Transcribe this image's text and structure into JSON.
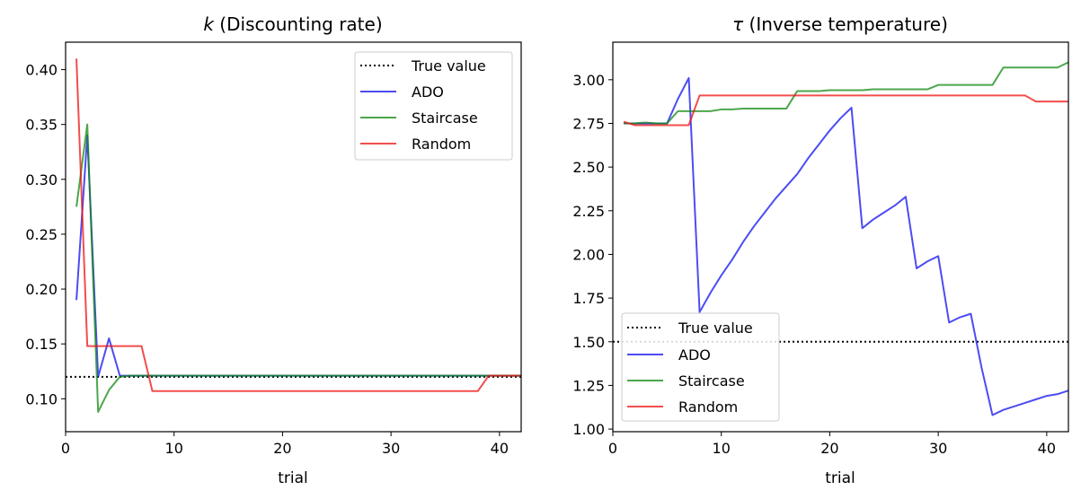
{
  "chart_data": [
    {
      "type": "line",
      "title_symbol": "k",
      "title_text": " (Discounting rate)",
      "xlabel": "trial",
      "ylabel": "",
      "xlim": [
        0,
        42
      ],
      "ylim": [
        0.07,
        0.425
      ],
      "xticks": [
        0,
        10,
        20,
        30,
        40
      ],
      "yticks": [
        0.1,
        0.15,
        0.2,
        0.25,
        0.3,
        0.35,
        0.4
      ],
      "ytick_labels": [
        "0.10",
        "0.15",
        "0.20",
        "0.25",
        "0.30",
        "0.35",
        "0.40"
      ],
      "grid": false,
      "legend_position": "upper right",
      "true_value": {
        "name": "True value",
        "value": 0.12,
        "color": "#000000"
      },
      "series": [
        {
          "name": "ADO",
          "color": "#0000ee",
          "x": [
            1,
            2,
            3,
            4,
            5,
            6,
            7,
            8,
            9,
            10,
            11,
            12,
            13,
            14,
            15,
            16,
            17,
            18,
            19,
            20,
            21,
            22,
            23,
            24,
            25,
            26,
            27,
            28,
            29,
            30,
            31,
            32,
            33,
            34,
            35,
            36,
            37,
            38,
            39,
            40,
            41,
            42
          ],
          "values": [
            0.19,
            0.34,
            0.12,
            0.155,
            0.121,
            0.121,
            0.121,
            0.121,
            0.121,
            0.121,
            0.121,
            0.121,
            0.121,
            0.121,
            0.121,
            0.121,
            0.121,
            0.121,
            0.121,
            0.121,
            0.121,
            0.121,
            0.121,
            0.121,
            0.121,
            0.121,
            0.121,
            0.121,
            0.121,
            0.121,
            0.121,
            0.121,
            0.121,
            0.121,
            0.121,
            0.121,
            0.121,
            0.121,
            0.121,
            0.121,
            0.121,
            0.121
          ]
        },
        {
          "name": "Staircase",
          "color": "#108a10",
          "x": [
            1,
            2,
            3,
            4,
            5,
            6,
            7,
            8,
            9,
            10,
            11,
            12,
            13,
            14,
            15,
            16,
            17,
            18,
            19,
            20,
            21,
            22,
            23,
            24,
            25,
            26,
            27,
            28,
            29,
            30,
            31,
            32,
            33,
            34,
            35,
            36,
            37,
            38,
            39,
            40,
            41,
            42
          ],
          "values": [
            0.275,
            0.35,
            0.088,
            0.108,
            0.12,
            0.121,
            0.121,
            0.121,
            0.121,
            0.121,
            0.121,
            0.121,
            0.121,
            0.121,
            0.121,
            0.121,
            0.121,
            0.121,
            0.121,
            0.121,
            0.121,
            0.121,
            0.121,
            0.121,
            0.121,
            0.121,
            0.121,
            0.121,
            0.121,
            0.121,
            0.121,
            0.121,
            0.121,
            0.121,
            0.121,
            0.121,
            0.121,
            0.121,
            0.121,
            0.121,
            0.121,
            0.121
          ]
        },
        {
          "name": "Random",
          "color": "#ee1111",
          "x": [
            1,
            2,
            3,
            4,
            5,
            6,
            7,
            8,
            9,
            10,
            11,
            12,
            13,
            14,
            15,
            16,
            17,
            18,
            19,
            20,
            21,
            22,
            23,
            24,
            25,
            26,
            27,
            28,
            29,
            30,
            31,
            32,
            33,
            34,
            35,
            36,
            37,
            38,
            39,
            40,
            41,
            42
          ],
          "values": [
            0.41,
            0.148,
            0.148,
            0.148,
            0.148,
            0.148,
            0.148,
            0.107,
            0.107,
            0.107,
            0.107,
            0.107,
            0.107,
            0.107,
            0.107,
            0.107,
            0.107,
            0.107,
            0.107,
            0.107,
            0.107,
            0.107,
            0.107,
            0.107,
            0.107,
            0.107,
            0.107,
            0.107,
            0.107,
            0.107,
            0.107,
            0.107,
            0.107,
            0.107,
            0.107,
            0.107,
            0.107,
            0.107,
            0.121,
            0.121,
            0.121,
            0.121
          ]
        }
      ]
    },
    {
      "type": "line",
      "title_symbol": "τ",
      "title_text": " (Inverse temperature)",
      "xlabel": "trial",
      "ylabel": "",
      "xlim": [
        0,
        42
      ],
      "ylim": [
        0.985,
        3.215
      ],
      "xticks": [
        0,
        10,
        20,
        30,
        40
      ],
      "yticks": [
        1.0,
        1.25,
        1.5,
        1.75,
        2.0,
        2.25,
        2.5,
        2.75,
        3.0
      ],
      "ytick_labels": [
        "1.00",
        "1.25",
        "1.50",
        "1.75",
        "2.00",
        "2.25",
        "2.50",
        "2.75",
        "3.00"
      ],
      "grid": false,
      "legend_position": "lower left",
      "true_value": {
        "name": "True value",
        "value": 1.5,
        "color": "#000000"
      },
      "series": [
        {
          "name": "ADO",
          "color": "#0000ee",
          "x": [
            1,
            2,
            3,
            4,
            5,
            6,
            7,
            8,
            9,
            10,
            11,
            12,
            13,
            14,
            15,
            16,
            17,
            18,
            19,
            20,
            21,
            22,
            23,
            24,
            25,
            26,
            27,
            28,
            29,
            30,
            31,
            32,
            33,
            34,
            35,
            36,
            37,
            38,
            39,
            40,
            41,
            42
          ],
          "values": [
            2.75,
            2.75,
            2.75,
            2.75,
            2.75,
            2.89,
            3.01,
            1.67,
            1.78,
            1.88,
            1.97,
            2.07,
            2.16,
            2.24,
            2.32,
            2.39,
            2.46,
            2.55,
            2.63,
            2.71,
            2.78,
            2.84,
            2.15,
            2.2,
            2.24,
            2.28,
            2.33,
            1.92,
            1.96,
            1.99,
            1.61,
            1.64,
            1.66,
            1.35,
            1.08,
            1.11,
            1.13,
            1.15,
            1.17,
            1.19,
            1.2,
            1.22
          ]
        },
        {
          "name": "Staircase",
          "color": "#108a10",
          "x": [
            1,
            2,
            3,
            4,
            5,
            6,
            7,
            8,
            9,
            10,
            11,
            12,
            13,
            14,
            15,
            16,
            17,
            18,
            19,
            20,
            21,
            22,
            23,
            24,
            25,
            26,
            27,
            28,
            29,
            30,
            31,
            32,
            33,
            34,
            35,
            36,
            37,
            38,
            39,
            40,
            41,
            42
          ],
          "values": [
            2.75,
            2.75,
            2.755,
            2.75,
            2.75,
            2.82,
            2.82,
            2.82,
            2.82,
            2.83,
            2.83,
            2.835,
            2.835,
            2.835,
            2.835,
            2.835,
            2.935,
            2.935,
            2.935,
            2.94,
            2.94,
            2.94,
            2.94,
            2.945,
            2.945,
            2.945,
            2.945,
            2.945,
            2.945,
            2.97,
            2.97,
            2.97,
            2.97,
            2.97,
            2.97,
            3.07,
            3.07,
            3.07,
            3.07,
            3.07,
            3.07,
            3.1
          ]
        },
        {
          "name": "Random",
          "color": "#ee1111",
          "x": [
            1,
            2,
            3,
            4,
            5,
            6,
            7,
            8,
            9,
            10,
            11,
            12,
            13,
            14,
            15,
            16,
            17,
            18,
            19,
            20,
            21,
            22,
            23,
            24,
            25,
            26,
            27,
            28,
            29,
            30,
            31,
            32,
            33,
            34,
            35,
            36,
            37,
            38,
            39,
            40,
            41,
            42
          ],
          "values": [
            2.76,
            2.74,
            2.74,
            2.74,
            2.74,
            2.74,
            2.74,
            2.91,
            2.91,
            2.91,
            2.91,
            2.91,
            2.91,
            2.91,
            2.91,
            2.91,
            2.91,
            2.91,
            2.91,
            2.91,
            2.91,
            2.91,
            2.91,
            2.91,
            2.91,
            2.91,
            2.91,
            2.91,
            2.91,
            2.91,
            2.91,
            2.91,
            2.91,
            2.91,
            2.91,
            2.91,
            2.91,
            2.91,
            2.875,
            2.875,
            2.875,
            2.875
          ]
        }
      ]
    }
  ]
}
